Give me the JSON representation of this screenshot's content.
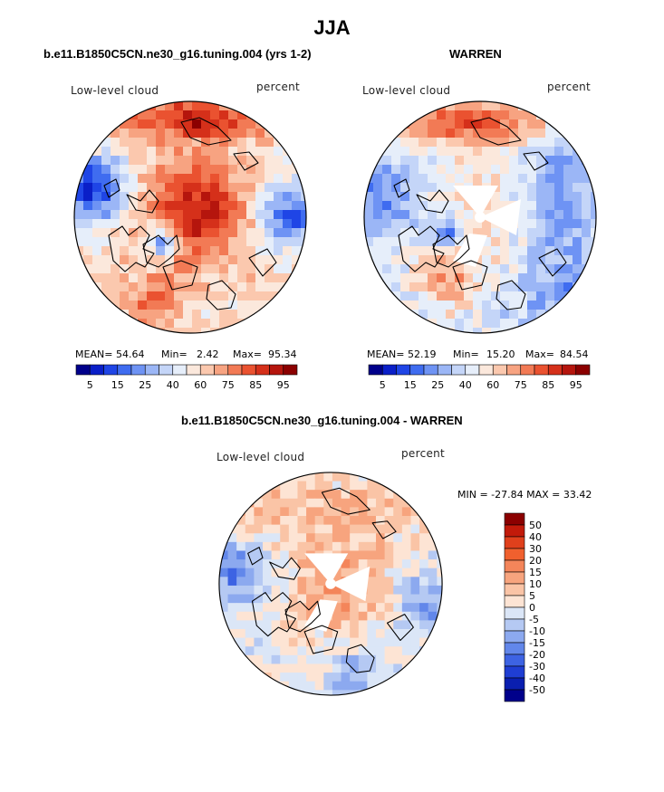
{
  "page": {
    "title": "JJA",
    "panel1_title": "b.e11.B1850C5CN.ne30_g16.tuning.004 (yrs 1-2)",
    "panel2_title": "WARREN",
    "panel3_title": "b.e11.B1850C5CN.ne30_g16.tuning.004 - WARREN"
  },
  "chart_data": [
    {
      "type": "heatmap",
      "projection": "polar stereographic (north)",
      "title": "b.e11.B1850C5CN.ne30_g16.tuning.004 (yrs 1-2)",
      "left_label": "Low-level cloud",
      "right_label": "percent",
      "mean_label": "MEAN=",
      "mean": "54.64",
      "min_label": "Min=",
      "min": "2.42",
      "max_label": "Max=",
      "max": "95.34",
      "colorbar": {
        "orientation": "horizontal",
        "tick_labels": [
          "5",
          "15",
          "25",
          "40",
          "60",
          "75",
          "85",
          "95"
        ],
        "colors": [
          "#00008b",
          "#0a1fc8",
          "#1f45e6",
          "#3f6cf0",
          "#6e93f4",
          "#9bb6f6",
          "#c4d5f8",
          "#e6eefa",
          "#fbe8dc",
          "#fbc8ae",
          "#f7a381",
          "#f27a55",
          "#ea5230",
          "#d5301a",
          "#b5150d",
          "#8b0000"
        ]
      },
      "land_masks": [
        "Greenland",
        "Canadian Archipelago",
        "Scandinavia"
      ]
    },
    {
      "type": "heatmap",
      "projection": "polar stereographic (north)",
      "title": "WARREN",
      "left_label": "Low-level cloud",
      "right_label": "percent",
      "mean_label": "MEAN=",
      "mean": "52.19",
      "min_label": "Min=",
      "min": "15.20",
      "max_label": "Max=",
      "max": "84.54",
      "colorbar": {
        "orientation": "horizontal",
        "tick_labels": [
          "5",
          "15",
          "25",
          "40",
          "60",
          "75",
          "85",
          "95"
        ],
        "colors": [
          "#00008b",
          "#0a1fc8",
          "#1f45e6",
          "#3f6cf0",
          "#6e93f4",
          "#9bb6f6",
          "#c4d5f8",
          "#e6eefa",
          "#fbe8dc",
          "#fbc8ae",
          "#f7a381",
          "#f27a55",
          "#ea5230",
          "#d5301a",
          "#b5150d",
          "#8b0000"
        ]
      }
    },
    {
      "type": "heatmap",
      "projection": "polar stereographic (north)",
      "title": "b.e11.B1850C5CN.ne30_g16.tuning.004 - WARREN",
      "left_label": "Low-level cloud",
      "right_label": "percent",
      "range_text": "MIN = -27.84 MAX =  33.42",
      "min": "-27.84",
      "max": "33.42",
      "colorbar": {
        "orientation": "vertical",
        "tick_labels": [
          "50",
          "40",
          "30",
          "20",
          "15",
          "10",
          "5",
          "0",
          "-5",
          "-10",
          "-15",
          "-20",
          "-30",
          "-40",
          "-50"
        ],
        "colors": [
          "#8b0000",
          "#c21a0a",
          "#e0401c",
          "#f0602e",
          "#f4855a",
          "#f7a47e",
          "#fac4a6",
          "#fde4d4",
          "#dbe6f7",
          "#b5c9f3",
          "#8ca9ef",
          "#6287ea",
          "#3d63e3",
          "#1f3ed3",
          "#0a1fb0",
          "#00008b"
        ]
      }
    }
  ]
}
